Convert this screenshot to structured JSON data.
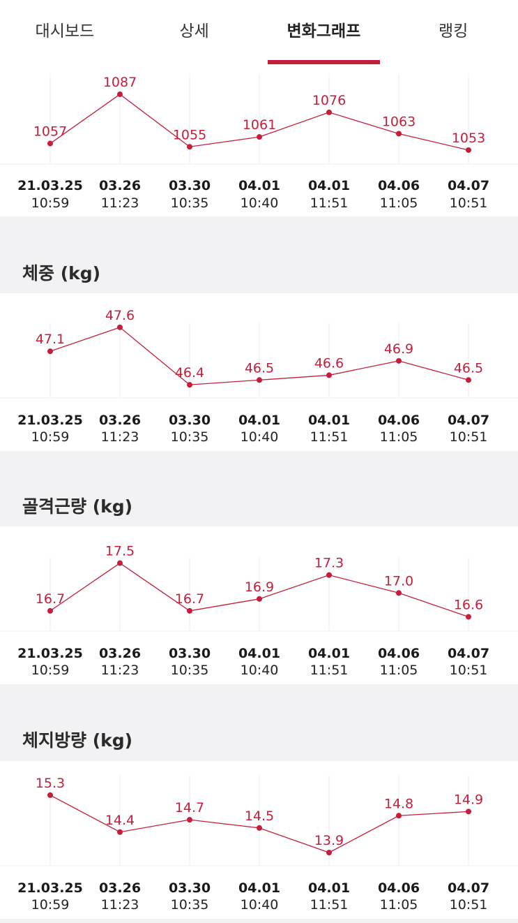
{
  "tabs": [
    {
      "label": "대시보드",
      "active": false
    },
    {
      "label": "상세",
      "active": false
    },
    {
      "label": "변화그래프",
      "active": true
    },
    {
      "label": "랭킹",
      "active": false
    }
  ],
  "accent_color": "#c41e3a",
  "x_labels": [
    {
      "date": "21.03.25",
      "time": "10:59"
    },
    {
      "date": "03.26",
      "time": "11:23"
    },
    {
      "date": "03.30",
      "time": "10:35"
    },
    {
      "date": "04.01",
      "time": "10:40"
    },
    {
      "date": "04.01",
      "time": "11:51"
    },
    {
      "date": "04.06",
      "time": "11:05"
    },
    {
      "date": "04.07",
      "time": "10:51"
    }
  ],
  "sections": {
    "weight": {
      "title": "체중 (kg)"
    },
    "muscle": {
      "title": "골격근량 (kg)"
    },
    "fat": {
      "title": "체지방량 (kg)"
    }
  },
  "chart_data": [
    {
      "type": "line",
      "title": "",
      "series": [
        {
          "values": [
            1057,
            1087,
            1055,
            1061,
            1076,
            1063,
            1053
          ]
        }
      ],
      "ylim": [
        1050,
        1090
      ],
      "grid": "vertical"
    },
    {
      "type": "line",
      "title": "체중 (kg)",
      "series": [
        {
          "values": [
            "47.1",
            "47.6",
            "46.4",
            "46.5",
            "46.6",
            "46.9",
            "46.5"
          ]
        }
      ],
      "ylim": [
        46.3,
        47.7
      ],
      "grid": "vertical"
    },
    {
      "type": "line",
      "title": "골격근량 (kg)",
      "series": [
        {
          "values": [
            "16.7",
            "17.5",
            "16.7",
            "16.9",
            "17.3",
            "17.0",
            "16.6"
          ]
        }
      ],
      "ylim": [
        16.5,
        17.6
      ],
      "grid": "vertical"
    },
    {
      "type": "line",
      "title": "체지방량 (kg)",
      "series": [
        {
          "values": [
            "15.3",
            "14.4",
            "14.7",
            "14.5",
            "13.9",
            "14.8",
            "14.9"
          ]
        }
      ],
      "ylim": [
        13.8,
        15.4
      ],
      "grid": "vertical"
    }
  ]
}
